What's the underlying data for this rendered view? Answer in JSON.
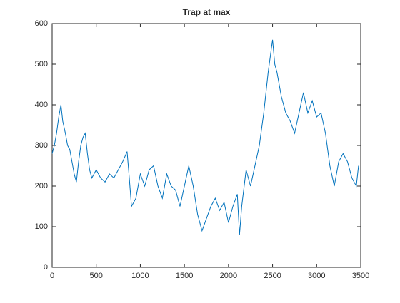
{
  "chart_data": {
    "type": "line",
    "title": "Trap at max",
    "x": [
      0,
      25,
      50,
      75,
      100,
      120,
      150,
      175,
      200,
      225,
      250,
      275,
      300,
      325,
      350,
      375,
      400,
      425,
      450,
      500,
      550,
      600,
      650,
      700,
      750,
      800,
      850,
      875,
      900,
      950,
      1000,
      1050,
      1100,
      1150,
      1200,
      1250,
      1300,
      1350,
      1400,
      1450,
      1500,
      1550,
      1600,
      1650,
      1700,
      1750,
      1800,
      1850,
      1900,
      1950,
      2000,
      2050,
      2100,
      2125,
      2150,
      2200,
      2250,
      2300,
      2350,
      2400,
      2450,
      2475,
      2500,
      2525,
      2550,
      2600,
      2650,
      2700,
      2750,
      2800,
      2850,
      2900,
      2950,
      3000,
      3050,
      3100,
      3150,
      3200,
      3250,
      3300,
      3350,
      3400,
      3450,
      3475
    ],
    "series": [
      {
        "name": "Trap",
        "color": "#0072bd",
        "values": [
          280,
          300,
          330,
          370,
          400,
          360,
          330,
          300,
          290,
          260,
          230,
          210,
          260,
          300,
          320,
          330,
          280,
          240,
          220,
          240,
          220,
          210,
          230,
          220,
          240,
          260,
          285,
          220,
          150,
          170,
          230,
          200,
          240,
          250,
          200,
          170,
          230,
          200,
          190,
          150,
          200,
          250,
          200,
          130,
          90,
          120,
          150,
          170,
          140,
          160,
          110,
          150,
          180,
          80,
          150,
          240,
          200,
          250,
          300,
          380,
          480,
          520,
          560,
          500,
          480,
          420,
          380,
          360,
          330,
          380,
          430,
          380,
          410,
          370,
          380,
          330,
          250,
          200,
          260,
          280,
          260,
          220,
          200,
          250
        ]
      }
    ],
    "xlim": [
      0,
      3500
    ],
    "xticks": [
      0,
      500,
      1000,
      1500,
      2000,
      2500,
      3000,
      3500
    ],
    "ylim": [
      0,
      600
    ],
    "yticks": [
      0,
      100,
      200,
      300,
      400,
      500,
      600
    ],
    "grid": false
  }
}
